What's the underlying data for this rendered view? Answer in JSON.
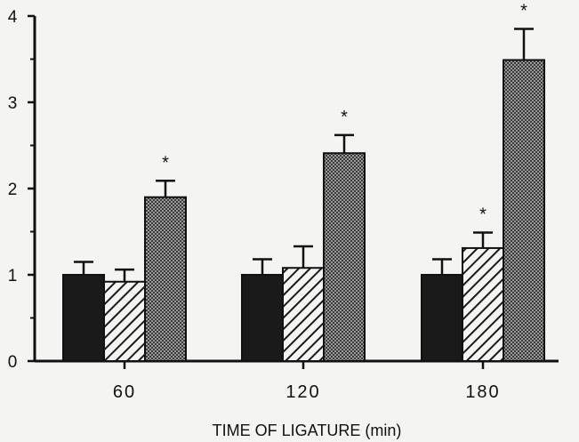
{
  "chart_data": {
    "type": "bar",
    "xlabel": "TIME OF LIGATURE (min)",
    "ylabel": "",
    "ylim": [
      0,
      4
    ],
    "yticks": [
      "0",
      "1",
      "2",
      "3",
      "4"
    ],
    "categories": [
      "60",
      "120",
      "180"
    ],
    "series": [
      {
        "fill": "solid",
        "color": "#1a1a1a",
        "values": [
          1.0,
          1.0,
          1.0
        ],
        "errors": [
          0.15,
          0.18,
          0.18
        ],
        "significant": [
          false,
          false,
          false
        ]
      },
      {
        "fill": "hatched",
        "color": "#1a1a1a",
        "values": [
          0.92,
          1.08,
          1.31
        ],
        "errors": [
          0.14,
          0.25,
          0.18
        ],
        "significant": [
          false,
          false,
          true
        ]
      },
      {
        "fill": "stippled",
        "color": "#555555",
        "values": [
          1.9,
          2.41,
          3.49
        ],
        "errors": [
          0.19,
          0.21,
          0.36
        ],
        "significant": [
          true,
          true,
          true
        ]
      }
    ],
    "significance_marker": "*",
    "grid": false,
    "legend": "none"
  }
}
